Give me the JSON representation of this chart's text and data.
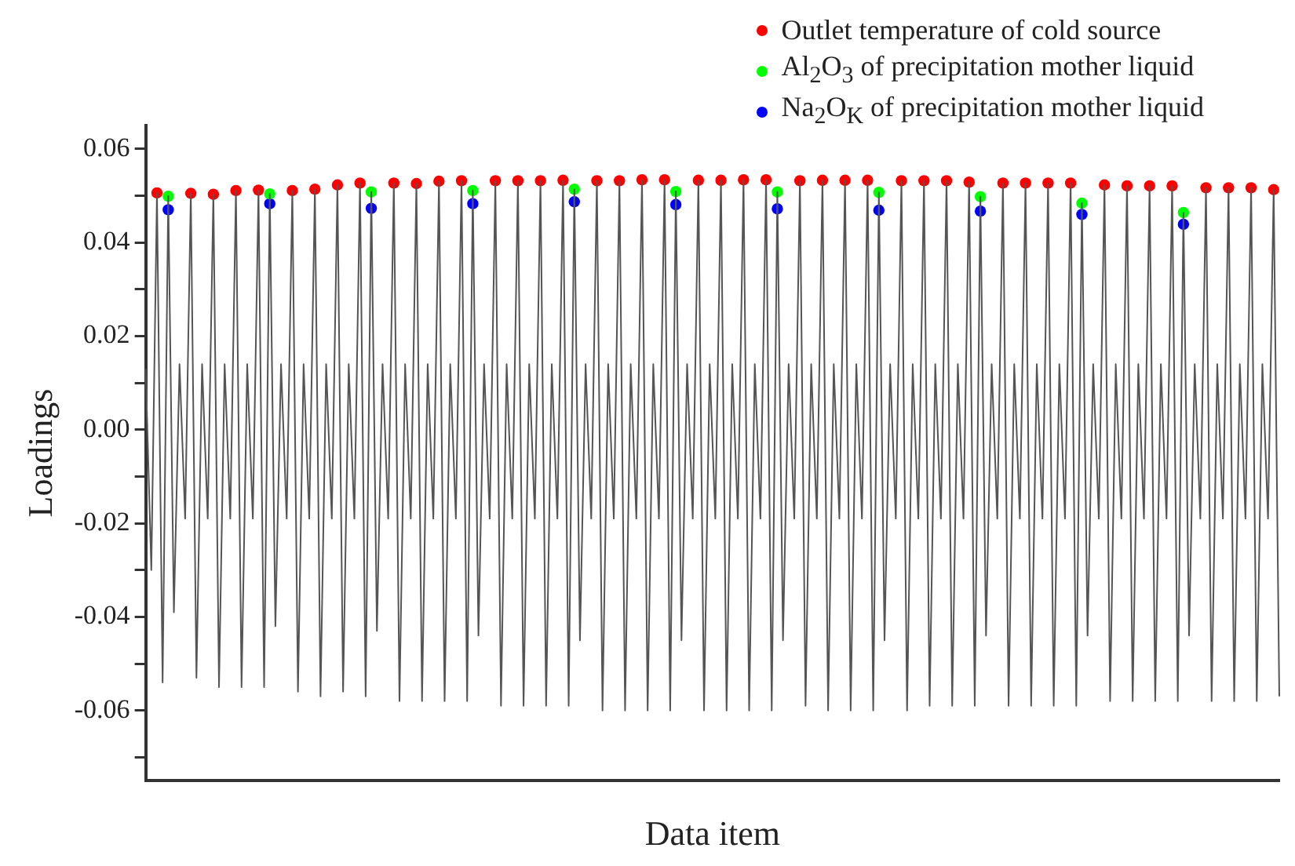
{
  "chart_data": {
    "type": "line",
    "xlabel": "Data item",
    "ylabel": "Loadings",
    "legend": "top right",
    "grid": false,
    "tick_labels": "y",
    "categories": [
      null,
      null,
      null,
      null,
      null,
      null,
      null,
      null,
      null,
      null,
      null,
      null,
      null,
      null,
      null,
      null,
      null,
      null,
      null,
      null,
      null,
      null,
      null,
      null,
      null,
      null,
      null,
      null,
      null,
      null,
      null,
      null,
      null,
      null,
      null,
      null,
      null,
      null,
      null,
      null,
      null,
      null,
      null,
      null,
      null,
      null,
      null,
      null,
      null,
      null,
      null,
      null,
      null,
      null,
      null,
      null,
      null,
      null,
      null,
      null,
      null,
      null,
      null,
      null,
      null,
      null,
      null,
      null,
      null,
      null,
      null,
      null,
      null,
      null,
      null,
      null,
      null,
      null,
      null,
      null,
      null,
      null,
      null,
      null,
      null,
      null,
      null,
      null,
      null,
      null,
      null,
      null,
      null,
      null,
      null,
      null,
      null,
      null,
      null,
      null,
      null,
      null,
      null,
      null,
      null,
      null,
      null,
      null,
      null,
      null,
      null,
      null,
      null,
      null,
      null,
      null,
      null,
      null,
      null,
      null,
      null,
      null,
      null,
      null,
      null,
      null,
      null,
      null,
      null,
      null,
      null,
      null,
      null,
      null,
      null,
      null,
      null,
      null,
      null,
      null,
      null,
      null,
      null,
      null,
      null,
      null,
      null,
      null,
      null,
      null,
      null,
      null,
      null,
      null,
      null,
      null,
      null,
      null,
      null,
      null,
      null,
      null,
      null,
      null,
      null,
      null,
      null,
      null,
      null,
      null,
      null,
      null,
      null,
      null,
      null,
      null,
      null,
      null,
      null,
      null,
      null,
      null,
      null,
      null,
      null,
      null,
      null,
      null,
      null,
      null,
      null,
      null,
      null,
      null,
      null,
      null,
      null,
      null,
      null,
      null,
      null,
      null
    ],
    "ylim": [
      -0.075,
      0.065
    ],
    "yticks": [
      {
        "value": -0.07,
        "label": null
      },
      -0.06,
      {
        "value": -0.05,
        "label": null
      },
      -0.04,
      {
        "value": -0.03,
        "label": null
      },
      -0.02,
      {
        "value": -0.01,
        "label": null
      },
      {
        "value": 0,
        "label": "0.00"
      },
      {
        "value": 0.01,
        "label": null
      },
      0.02,
      {
        "value": 0.03,
        "label": null
      },
      0.04,
      {
        "value": 0.05,
        "label": null
      },
      0.06
    ],
    "series": [
      {
        "color": "#555555",
        "marker": "none",
        "values": [
          0.013,
          -0.03,
          0.0506,
          -0.054,
          0.0499,
          -0.039,
          0.014,
          -0.019,
          0.0505,
          -0.053,
          0.014,
          -0.019,
          0.0503,
          -0.055,
          0.014,
          -0.019,
          0.0511,
          -0.055,
          0.014,
          -0.019,
          0.0512,
          -0.055,
          0.0504,
          -0.042,
          0.014,
          -0.019,
          0.0511,
          -0.056,
          0.014,
          -0.019,
          0.0514,
          -0.057,
          0.014,
          -0.019,
          0.0523,
          -0.056,
          0.014,
          -0.019,
          0.0527,
          -0.057,
          0.0508,
          -0.043,
          0.014,
          -0.019,
          0.0527,
          -0.058,
          0.014,
          -0.019,
          0.0526,
          -0.058,
          0.014,
          -0.019,
          0.0531,
          -0.058,
          0.014,
          -0.019,
          0.0532,
          -0.058,
          0.0511,
          -0.044,
          0.014,
          -0.019,
          0.0532,
          -0.059,
          0.014,
          -0.019,
          0.0532,
          -0.059,
          0.014,
          -0.019,
          0.0532,
          -0.059,
          0.014,
          -0.019,
          0.0533,
          -0.059,
          0.0514,
          -0.045,
          0.014,
          -0.019,
          0.0532,
          -0.06,
          0.014,
          -0.019,
          0.0532,
          -0.06,
          0.014,
          -0.019,
          0.0534,
          -0.06,
          0.014,
          -0.019,
          0.0534,
          -0.06,
          0.0509,
          -0.045,
          0.014,
          -0.019,
          0.0533,
          -0.06,
          0.014,
          -0.019,
          0.0533,
          -0.06,
          0.014,
          -0.019,
          0.0534,
          -0.06,
          0.014,
          -0.019,
          0.0534,
          -0.06,
          0.0508,
          -0.045,
          0.014,
          -0.019,
          0.0532,
          -0.059,
          0.014,
          -0.019,
          0.0533,
          -0.06,
          0.014,
          -0.019,
          0.0533,
          -0.06,
          0.014,
          -0.019,
          0.0533,
          -0.06,
          0.0507,
          -0.045,
          0.014,
          -0.019,
          0.0532,
          -0.06,
          0.014,
          -0.019,
          0.0532,
          -0.059,
          0.014,
          -0.019,
          0.0532,
          -0.059,
          0.014,
          -0.019,
          0.0529,
          -0.059,
          0.0498,
          -0.044,
          0.014,
          -0.019,
          0.0527,
          -0.059,
          0.014,
          -0.019,
          0.0527,
          -0.059,
          0.014,
          -0.019,
          0.0527,
          -0.059,
          0.014,
          -0.019,
          0.0527,
          -0.059,
          0.0484,
          -0.044,
          0.014,
          -0.019,
          0.0523,
          -0.058,
          0.014,
          -0.019,
          0.0521,
          -0.058,
          0.014,
          -0.019,
          0.0521,
          -0.058,
          0.014,
          -0.019,
          0.0521,
          -0.058,
          0.0464,
          -0.044,
          0.014,
          -0.019,
          0.0517,
          -0.058,
          0.014,
          -0.019,
          0.0517,
          -0.058,
          0.014,
          -0.019,
          0.0517,
          -0.058,
          0.014,
          -0.019,
          0.0513,
          -0.057
        ]
      },
      {
        "type": "scatter",
        "name": "Outlet temperature of cold source",
        "color": "#ff0000",
        "marker": "circle",
        "values": [
          null,
          null,
          0.0506,
          null,
          null,
          null,
          null,
          null,
          0.0505,
          null,
          null,
          null,
          0.0503,
          null,
          null,
          null,
          0.0511,
          null,
          null,
          null,
          0.0512,
          null,
          null,
          null,
          null,
          null,
          0.0511,
          null,
          null,
          null,
          0.0514,
          null,
          null,
          null,
          0.0523,
          null,
          null,
          null,
          0.0527,
          null,
          null,
          null,
          null,
          null,
          0.0527,
          null,
          null,
          null,
          0.0526,
          null,
          null,
          null,
          0.0531,
          null,
          null,
          null,
          0.0532,
          null,
          null,
          null,
          null,
          null,
          0.0532,
          null,
          null,
          null,
          0.0532,
          null,
          null,
          null,
          0.0532,
          null,
          null,
          null,
          0.0533,
          null,
          null,
          null,
          null,
          null,
          0.0532,
          null,
          null,
          null,
          0.0532,
          null,
          null,
          null,
          0.0534,
          null,
          null,
          null,
          0.0534,
          null,
          null,
          null,
          null,
          null,
          0.0533,
          null,
          null,
          null,
          0.0533,
          null,
          null,
          null,
          0.0534,
          null,
          null,
          null,
          0.0534,
          null,
          null,
          null,
          null,
          null,
          0.0532,
          null,
          null,
          null,
          0.0533,
          null,
          null,
          null,
          0.0533,
          null,
          null,
          null,
          0.0533,
          null,
          null,
          null,
          null,
          null,
          0.0532,
          null,
          null,
          null,
          0.0532,
          null,
          null,
          null,
          0.0532,
          null,
          null,
          null,
          0.0529,
          null,
          null,
          null,
          null,
          null,
          0.0527,
          null,
          null,
          null,
          0.0527,
          null,
          null,
          null,
          0.0527,
          null,
          null,
          null,
          0.0527,
          null,
          null,
          null,
          null,
          null,
          0.0523,
          null,
          null,
          null,
          0.0521,
          null,
          null,
          null,
          0.0521,
          null,
          null,
          null,
          0.0521,
          null,
          null,
          null,
          null,
          null,
          0.0517,
          null,
          null,
          null,
          0.0517,
          null,
          null,
          null,
          0.0517,
          null,
          null,
          null,
          0.0513,
          null
        ]
      },
      {
        "type": "scatter",
        "name": "Al$_{2}$O$_{3}$ of precipitation mother liquid",
        "color": "#00ff00",
        "marker": "circle",
        "values": [
          null,
          null,
          null,
          null,
          0.0499,
          null,
          null,
          null,
          null,
          null,
          null,
          null,
          null,
          null,
          null,
          null,
          null,
          null,
          null,
          null,
          null,
          null,
          0.0504,
          null,
          null,
          null,
          null,
          null,
          null,
          null,
          null,
          null,
          null,
          null,
          null,
          null,
          null,
          null,
          null,
          null,
          0.0508,
          null,
          null,
          null,
          null,
          null,
          null,
          null,
          null,
          null,
          null,
          null,
          null,
          null,
          null,
          null,
          null,
          null,
          0.0511,
          null,
          null,
          null,
          null,
          null,
          null,
          null,
          null,
          null,
          null,
          null,
          null,
          null,
          null,
          null,
          null,
          null,
          0.0514,
          null,
          null,
          null,
          null,
          null,
          null,
          null,
          null,
          null,
          null,
          null,
          null,
          null,
          null,
          null,
          null,
          null,
          0.0509,
          null,
          null,
          null,
          null,
          null,
          null,
          null,
          null,
          null,
          null,
          null,
          null,
          null,
          null,
          null,
          null,
          null,
          0.0508,
          null,
          null,
          null,
          null,
          null,
          null,
          null,
          null,
          null,
          null,
          null,
          null,
          null,
          null,
          null,
          null,
          null,
          0.0507,
          null,
          null,
          null,
          null,
          null,
          null,
          null,
          null,
          null,
          null,
          null,
          null,
          null,
          null,
          null,
          null,
          null,
          0.0498,
          null,
          null,
          null,
          null,
          null,
          null,
          null,
          null,
          null,
          null,
          null,
          null,
          null,
          null,
          null,
          null,
          null,
          0.0484,
          null,
          null,
          null,
          null,
          null,
          null,
          null,
          null,
          null,
          null,
          null,
          null,
          null,
          null,
          null,
          null,
          null,
          0.0464,
          null,
          null,
          null,
          null,
          null,
          null,
          null,
          null,
          null,
          null,
          null,
          null,
          null,
          null,
          null,
          null,
          null
        ]
      },
      {
        "type": "scatter",
        "name": "Na$_{2}$O$_{K}$ of precipitation mother liquid",
        "color": "#0000ff",
        "marker": "circle",
        "values": [
          null,
          null,
          null,
          null,
          0.047,
          null,
          null,
          null,
          null,
          null,
          null,
          null,
          null,
          null,
          null,
          null,
          null,
          null,
          null,
          null,
          null,
          null,
          0.0483,
          null,
          null,
          null,
          null,
          null,
          null,
          null,
          null,
          null,
          null,
          null,
          null,
          null,
          null,
          null,
          null,
          null,
          0.0473,
          null,
          null,
          null,
          null,
          null,
          null,
          null,
          null,
          null,
          null,
          null,
          null,
          null,
          null,
          null,
          null,
          null,
          0.0483,
          null,
          null,
          null,
          null,
          null,
          null,
          null,
          null,
          null,
          null,
          null,
          null,
          null,
          null,
          null,
          null,
          null,
          0.0487,
          null,
          null,
          null,
          null,
          null,
          null,
          null,
          null,
          null,
          null,
          null,
          null,
          null,
          null,
          null,
          null,
          null,
          0.0481,
          null,
          null,
          null,
          null,
          null,
          null,
          null,
          null,
          null,
          null,
          null,
          null,
          null,
          null,
          null,
          null,
          null,
          0.0472,
          null,
          null,
          null,
          null,
          null,
          null,
          null,
          null,
          null,
          null,
          null,
          null,
          null,
          null,
          null,
          null,
          null,
          0.0469,
          null,
          null,
          null,
          null,
          null,
          null,
          null,
          null,
          null,
          null,
          null,
          null,
          null,
          null,
          null,
          null,
          null,
          0.0467,
          null,
          null,
          null,
          null,
          null,
          null,
          null,
          null,
          null,
          null,
          null,
          null,
          null,
          null,
          null,
          null,
          null,
          0.046,
          null,
          null,
          null,
          null,
          null,
          null,
          null,
          null,
          null,
          null,
          null,
          null,
          null,
          null,
          null,
          null,
          null,
          0.0439,
          null,
          null,
          null,
          null,
          null,
          null,
          null,
          null,
          null,
          null,
          null,
          null,
          null,
          null,
          null,
          null,
          null
        ]
      }
    ]
  }
}
